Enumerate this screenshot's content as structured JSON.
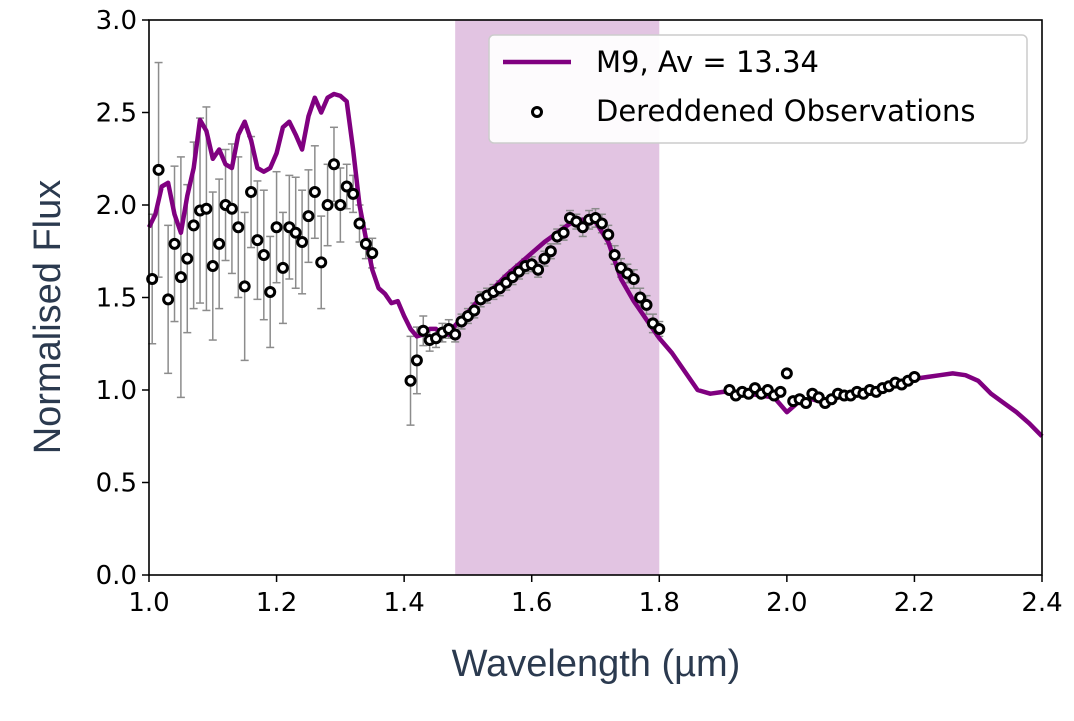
{
  "colors": {
    "model_line": "#800080",
    "band_fill": "#e2c4e2",
    "marker_edge": "#000000",
    "errorbar": "#8c8c8c",
    "axis_title": "#2b3a4f"
  },
  "chart_data": {
    "type": "line",
    "xlabel": "Wavelength (µm)",
    "ylabel": "Normalised Flux",
    "xlim": [
      1.0,
      2.4
    ],
    "ylim": [
      0.0,
      3.0
    ],
    "xticks": [
      "1.0",
      "1.2",
      "1.4",
      "1.6",
      "1.8",
      "2.0",
      "2.2",
      "2.4"
    ],
    "yticks": [
      "0.0",
      "0.5",
      "1.0",
      "1.5",
      "2.0",
      "2.5",
      "3.0"
    ],
    "grid": false,
    "legend_position": "top-right",
    "shaded_band": {
      "x_start": 1.48,
      "x_end": 1.8
    },
    "series": [
      {
        "name": "M9, Av = 13.34",
        "kind": "line",
        "x": [
          1.0,
          1.01,
          1.02,
          1.03,
          1.04,
          1.05,
          1.06,
          1.07,
          1.08,
          1.09,
          1.1,
          1.11,
          1.12,
          1.13,
          1.14,
          1.15,
          1.16,
          1.17,
          1.18,
          1.19,
          1.2,
          1.21,
          1.22,
          1.23,
          1.24,
          1.25,
          1.26,
          1.27,
          1.28,
          1.29,
          1.3,
          1.31,
          1.32,
          1.33,
          1.34,
          1.35,
          1.36,
          1.37,
          1.38,
          1.39,
          1.4,
          1.41,
          1.42,
          1.43,
          1.44,
          1.45,
          1.46,
          1.47,
          1.48,
          1.5,
          1.52,
          1.54,
          1.56,
          1.58,
          1.6,
          1.62,
          1.64,
          1.66,
          1.68,
          1.7,
          1.72,
          1.74,
          1.76,
          1.78,
          1.8,
          1.82,
          1.84,
          1.86,
          1.88,
          1.9,
          1.92,
          1.94,
          1.96,
          1.98,
          2.0,
          2.02,
          2.04,
          2.06,
          2.08,
          2.1,
          2.12,
          2.14,
          2.16,
          2.18,
          2.2,
          2.22,
          2.24,
          2.26,
          2.28,
          2.3,
          2.32,
          2.34,
          2.36,
          2.38,
          2.4
        ],
        "y": [
          1.88,
          1.95,
          2.1,
          2.12,
          1.95,
          1.85,
          2.05,
          2.2,
          2.46,
          2.4,
          2.25,
          2.3,
          2.22,
          2.2,
          2.38,
          2.45,
          2.35,
          2.2,
          2.18,
          2.2,
          2.28,
          2.42,
          2.45,
          2.38,
          2.3,
          2.48,
          2.58,
          2.5,
          2.58,
          2.6,
          2.59,
          2.56,
          2.3,
          2.0,
          1.82,
          1.65,
          1.55,
          1.52,
          1.47,
          1.48,
          1.4,
          1.33,
          1.29,
          1.3,
          1.33,
          1.33,
          1.3,
          1.3,
          1.35,
          1.42,
          1.5,
          1.55,
          1.62,
          1.68,
          1.74,
          1.8,
          1.85,
          1.9,
          1.92,
          1.91,
          1.8,
          1.6,
          1.48,
          1.38,
          1.28,
          1.2,
          1.1,
          1.0,
          0.98,
          0.99,
          0.99,
          0.98,
          0.97,
          0.96,
          0.88,
          0.94,
          0.95,
          0.93,
          0.96,
          0.98,
          0.99,
          1.0,
          1.02,
          1.04,
          1.06,
          1.07,
          1.08,
          1.09,
          1.08,
          1.05,
          0.98,
          0.93,
          0.88,
          0.82,
          0.75
        ]
      },
      {
        "name": "Dereddened Observations",
        "kind": "scatter",
        "x": [
          1.005,
          1.015,
          1.03,
          1.04,
          1.05,
          1.06,
          1.07,
          1.08,
          1.09,
          1.1,
          1.11,
          1.12,
          1.13,
          1.14,
          1.15,
          1.16,
          1.17,
          1.18,
          1.19,
          1.2,
          1.21,
          1.22,
          1.23,
          1.24,
          1.25,
          1.26,
          1.27,
          1.28,
          1.29,
          1.3,
          1.31,
          1.32,
          1.33,
          1.34,
          1.35,
          1.41,
          1.42,
          1.43,
          1.44,
          1.45,
          1.46,
          1.47,
          1.48,
          1.49,
          1.5,
          1.51,
          1.52,
          1.53,
          1.54,
          1.55,
          1.56,
          1.57,
          1.58,
          1.59,
          1.6,
          1.61,
          1.62,
          1.63,
          1.64,
          1.65,
          1.66,
          1.67,
          1.68,
          1.69,
          1.7,
          1.71,
          1.72,
          1.73,
          1.74,
          1.75,
          1.76,
          1.77,
          1.78,
          1.79,
          1.8,
          1.91,
          1.92,
          1.93,
          1.94,
          1.95,
          1.96,
          1.97,
          1.98,
          1.99,
          2.0,
          2.01,
          2.02,
          2.03,
          2.04,
          2.05,
          2.06,
          2.07,
          2.08,
          2.09,
          2.1,
          2.11,
          2.12,
          2.13,
          2.14,
          2.15,
          2.16,
          2.17,
          2.18,
          2.19,
          2.2
        ],
        "y": [
          1.6,
          2.19,
          1.49,
          1.79,
          1.61,
          1.71,
          1.89,
          1.97,
          1.98,
          1.67,
          1.79,
          2.0,
          1.98,
          1.88,
          1.56,
          2.07,
          1.81,
          1.73,
          1.53,
          1.88,
          1.66,
          1.88,
          1.85,
          1.8,
          1.94,
          2.07,
          1.69,
          2.0,
          2.22,
          2.0,
          2.1,
          2.06,
          1.9,
          1.79,
          1.74,
          1.05,
          1.16,
          1.32,
          1.27,
          1.28,
          1.31,
          1.33,
          1.3,
          1.37,
          1.4,
          1.43,
          1.49,
          1.51,
          1.53,
          1.55,
          1.58,
          1.61,
          1.64,
          1.67,
          1.68,
          1.65,
          1.71,
          1.75,
          1.83,
          1.85,
          1.93,
          1.91,
          1.88,
          1.92,
          1.93,
          1.9,
          1.84,
          1.73,
          1.66,
          1.63,
          1.6,
          1.5,
          1.46,
          1.36,
          1.33,
          1.0,
          0.97,
          0.99,
          0.98,
          1.01,
          0.98,
          1.0,
          0.97,
          0.99,
          1.09,
          0.94,
          0.95,
          0.93,
          0.98,
          0.96,
          0.93,
          0.95,
          0.98,
          0.97,
          0.97,
          0.99,
          0.98,
          1.0,
          0.99,
          1.01,
          1.02,
          1.04,
          1.03,
          1.05,
          1.07
        ],
        "yerr": [
          0.35,
          0.58,
          0.4,
          0.42,
          0.65,
          0.4,
          0.45,
          0.5,
          0.55,
          0.4,
          0.35,
          0.3,
          0.35,
          0.38,
          0.4,
          0.3,
          0.32,
          0.35,
          0.3,
          0.3,
          0.3,
          0.28,
          0.3,
          0.28,
          0.25,
          0.25,
          0.25,
          0.22,
          0.2,
          0.2,
          0.12,
          0.1,
          0.1,
          0.08,
          0.08,
          0.24,
          0.18,
          0.08,
          0.06,
          0.05,
          0.05,
          0.05,
          0.04,
          0.04,
          0.04,
          0.04,
          0.04,
          0.04,
          0.04,
          0.04,
          0.04,
          0.04,
          0.04,
          0.04,
          0.04,
          0.04,
          0.04,
          0.04,
          0.04,
          0.04,
          0.04,
          0.04,
          0.05,
          0.05,
          0.05,
          0.05,
          0.05,
          0.05,
          0.05,
          0.05,
          0.05,
          0.05,
          0.05,
          0.05,
          0.04,
          0.02,
          0.02,
          0.02,
          0.02,
          0.02,
          0.02,
          0.02,
          0.02,
          0.02,
          0.02,
          0.02,
          0.02,
          0.02,
          0.02,
          0.02,
          0.02,
          0.02,
          0.02,
          0.02,
          0.02,
          0.02,
          0.02,
          0.02,
          0.02,
          0.02,
          0.02,
          0.02,
          0.02,
          0.02,
          0.02
        ]
      }
    ]
  }
}
